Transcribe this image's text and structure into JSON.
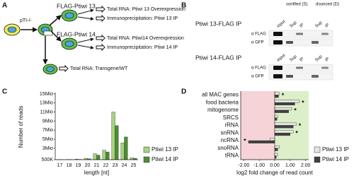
{
  "panel_a": {
    "label": "A",
    "parent": "pTI-/-",
    "lines": [
      {
        "name": "FLAG-Ptiwi 13",
        "outputs": [
          "Total RNA: Ptiwi 13 Overexpression",
          "Immunoprecipitation: Ptiwi 13 IP"
        ]
      },
      {
        "name": "FLAG-Ptiwi 14",
        "outputs": [
          "Total RNA: Ptiwi14 Overexpression",
          "Immunoprecipitation: Ptiwi 14 IP"
        ]
      }
    ],
    "control": "Total RNA: Transgene/WT"
  },
  "panel_b": {
    "label": "B",
    "conditions": [
      "sonified (S)",
      "dounced (D)"
    ],
    "blots": [
      {
        "title": "Ptiwi 13-FLAG IP",
        "lanes": [
          "input",
          "Sup",
          "IP",
          "Sup",
          "IP"
        ],
        "antibodies": [
          "α FLAG",
          "α GFP"
        ]
      },
      {
        "title": "Ptiwi 14-FLAG IP",
        "lanes": [
          "input",
          "Sup",
          "IP",
          "Sup",
          "IP"
        ],
        "antibodies": [
          "α FLAG",
          "α GFP"
        ]
      }
    ]
  },
  "chart_data": [
    {
      "panel_label": "C",
      "type": "bar",
      "y_label": "Number of reads",
      "x_label": "length [nt]",
      "categories": [
        "17",
        "18",
        "19",
        "20",
        "21",
        "22",
        "23",
        "24",
        "25"
      ],
      "series": [
        {
          "name": "Ptiwi 13 IP",
          "color": "#a7d37c",
          "values": [
            520000,
            550000,
            600000,
            800000,
            1800000,
            2600000,
            11000000,
            4200000,
            900000
          ]
        },
        {
          "name": "Ptiwi 14 IP",
          "color": "#4a8f32",
          "values": [
            510000,
            530000,
            560000,
            700000,
            1500000,
            2200000,
            8000000,
            5500000,
            800000
          ]
        }
      ],
      "ylim": [
        500000,
        15000000
      ],
      "yticks": [
        {
          "value": 500000,
          "label": "500K"
        },
        {
          "value": 3000000,
          "label": "3Mio"
        },
        {
          "value": 5000000,
          "label": "5Mio"
        },
        {
          "value": 7000000,
          "label": "7Mio"
        },
        {
          "value": 9000000,
          "label": "9Mio"
        },
        {
          "value": 11000000,
          "label": "11Mio"
        },
        {
          "value": 13000000,
          "label": "13Mio"
        },
        {
          "value": 15000000,
          "label": "15Mio"
        }
      ],
      "legend": "right"
    },
    {
      "panel_label": "D",
      "type": "hbar",
      "x_label": "log2 fold change of read count",
      "categories": [
        "all MAC genes",
        "food bacteria",
        "mitogenome",
        "SRCS",
        "rRNA",
        "snRNA",
        "ncRNA",
        "snoRNA",
        "tRNA"
      ],
      "series": [
        {
          "name": "Ptiwi 13 IP",
          "color": "#e6e6e6",
          "values": [
            0.3,
            1.6,
            1.1,
            0.2,
            1.4,
            1.2,
            -0.3,
            0.3,
            0.2
          ]
        },
        {
          "name": "Ptiwi 14 IP",
          "color": "#404040",
          "values": [
            0.25,
            1.3,
            0.9,
            0.15,
            1.2,
            1.0,
            -1.7,
            0.2,
            0.1
          ]
        }
      ],
      "annotations": [
        "*",
        "*",
        "*",
        null,
        "*",
        "*",
        "*",
        null,
        null
      ],
      "xlim": [
        -2.2,
        2.2
      ],
      "xticks": [
        {
          "value": -2,
          "label": "-2.00"
        },
        {
          "value": -1,
          "label": "-1.00"
        },
        {
          "value": 0,
          "label": "0.00"
        },
        {
          "value": 1,
          "label": "1.00"
        },
        {
          "value": 2,
          "label": "2.00"
        }
      ],
      "shading": {
        "negative": "#f6d3d6",
        "positive": "#dcefc8"
      },
      "legend": "right"
    }
  ]
}
